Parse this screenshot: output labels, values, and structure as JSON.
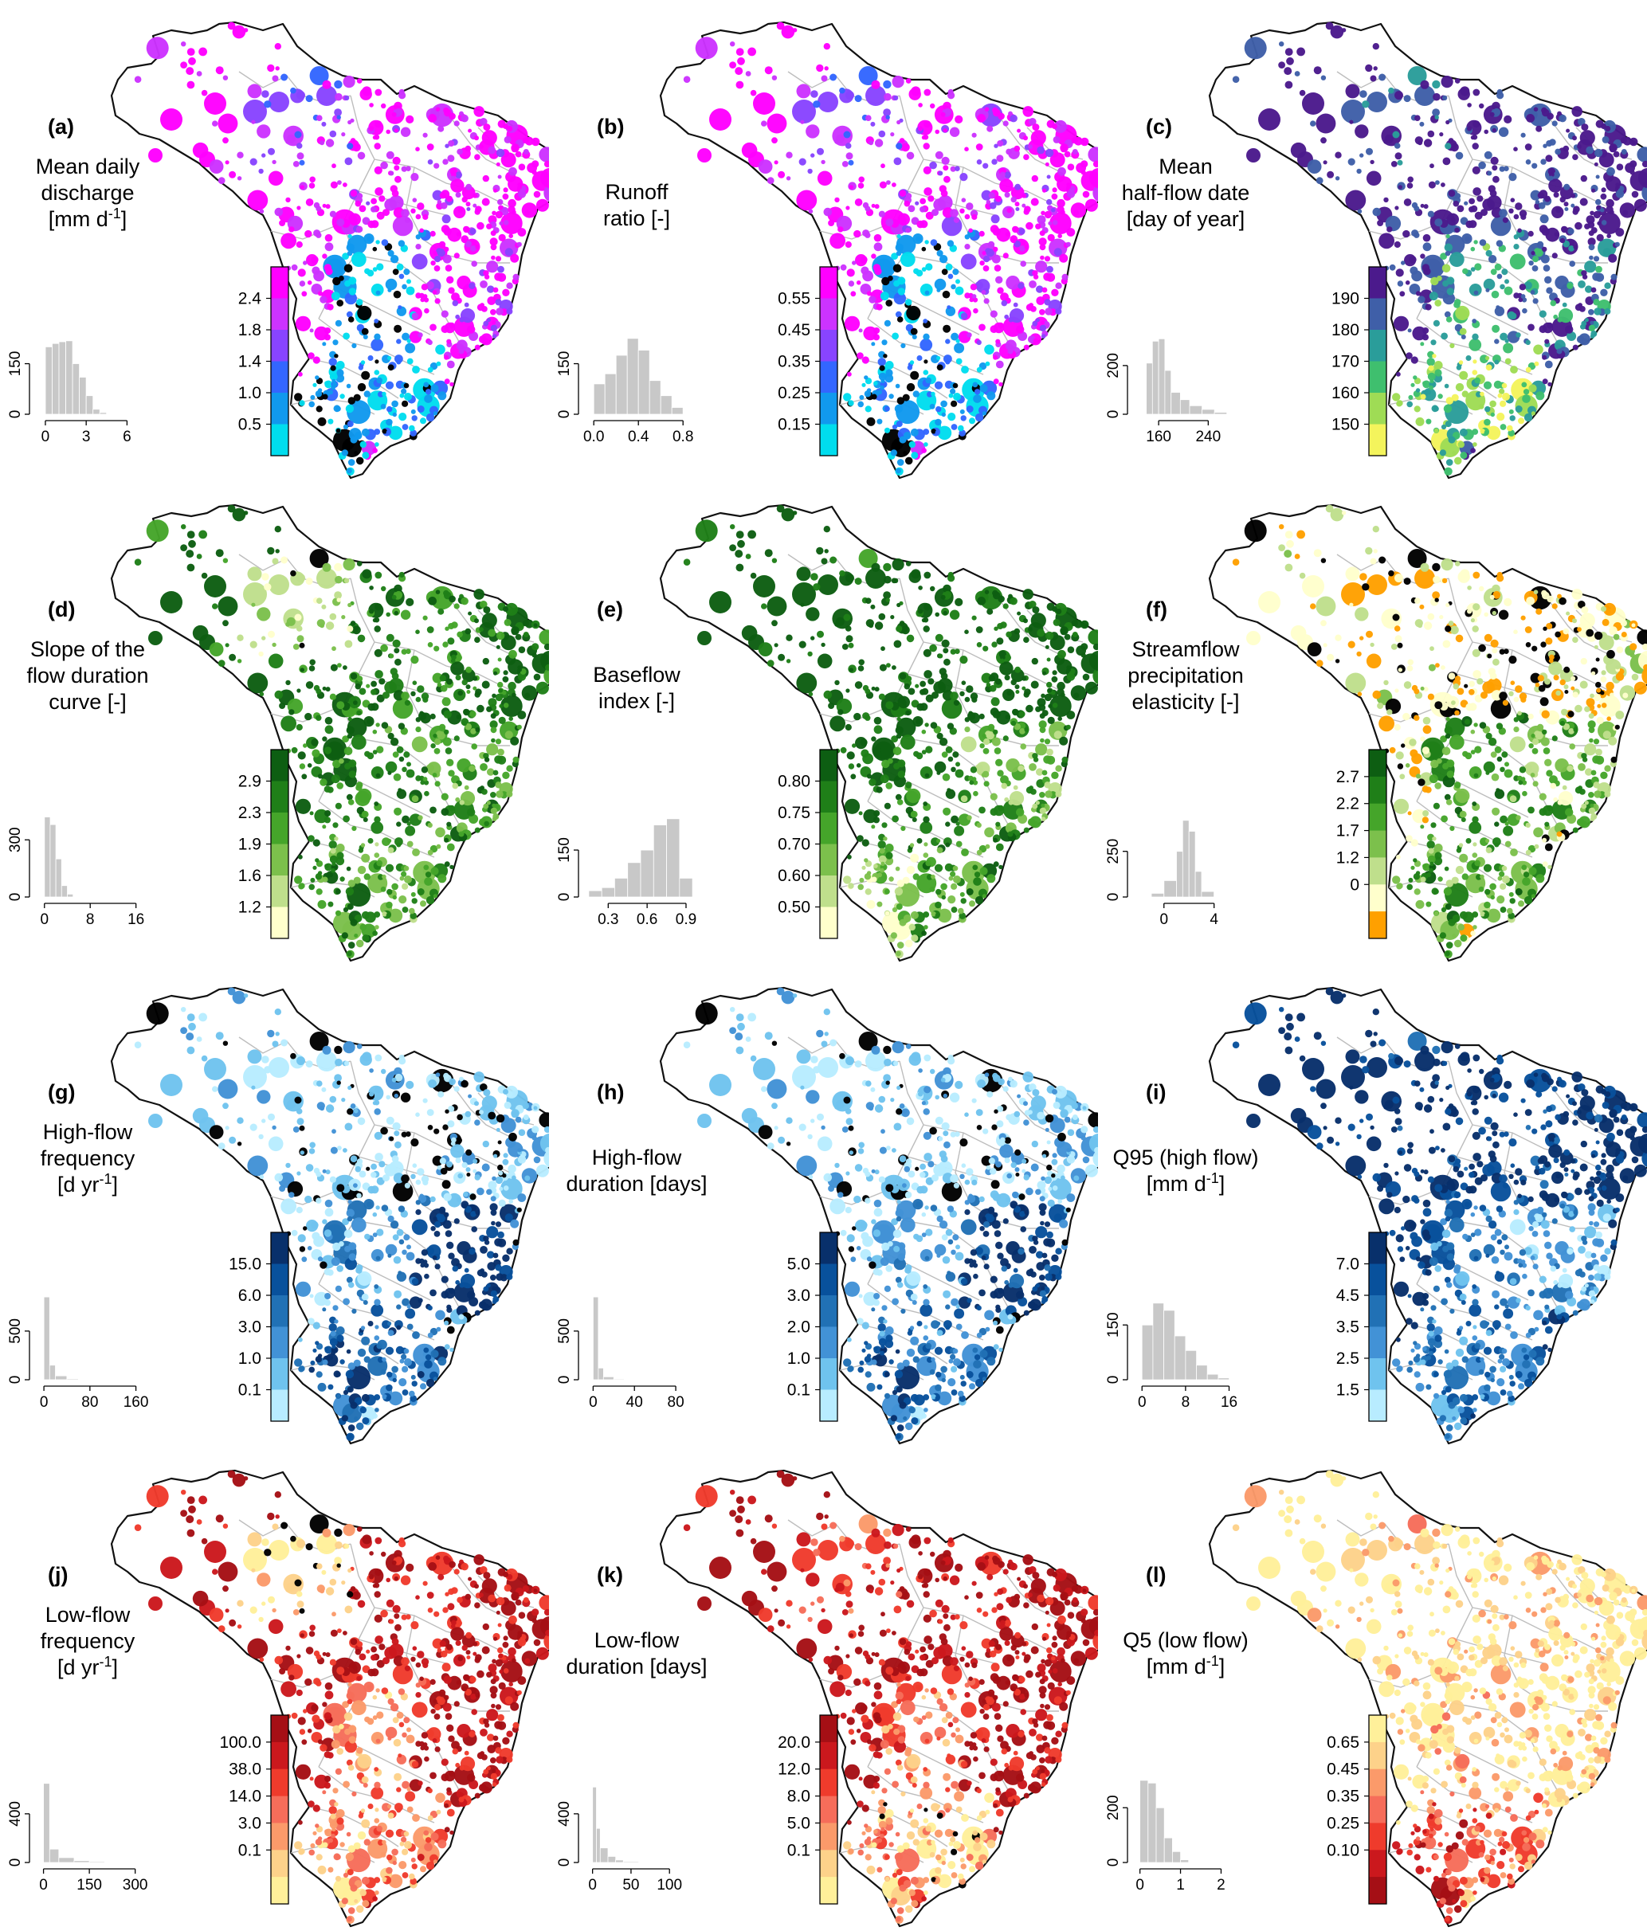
{
  "colors": {
    "map_border": "#111111",
    "state_lines": "#bdbdbd",
    "histogram_fill": "#c8c8c8",
    "histogram_edge": "#ffffff"
  },
  "chart_data": [
    {
      "type": "scatter",
      "tag": "(a)",
      "title_lines": [
        "Mean daily",
        "discharge",
        "[mm d-1]"
      ],
      "legend_labels": [
        "2.4",
        "1.8",
        "1.4",
        "1.0",
        "0.5"
      ],
      "legend_colors": [
        "#ff00ff",
        "#cc33ff",
        "#8844ff",
        "#3366ff",
        "#1199ee",
        "#00ddee"
      ],
      "histogram": {
        "y_ticks": [
          "0",
          "150"
        ],
        "x_ticks": [
          "0",
          "3",
          "6"
        ],
        "x_range": [
          -0.7,
          7.5
        ],
        "y_max": 260,
        "bins": [
          {
            "x0": 0,
            "x1": 0.5,
            "count": 200
          },
          {
            "x0": 0.5,
            "x1": 1,
            "count": 210
          },
          {
            "x0": 1,
            "x1": 1.5,
            "count": 215
          },
          {
            "x0": 1.5,
            "x1": 2,
            "count": 218
          },
          {
            "x0": 2,
            "x1": 2.5,
            "count": 150
          },
          {
            "x0": 2.5,
            "x1": 3,
            "count": 110
          },
          {
            "x0": 3,
            "x1": 3.5,
            "count": 55
          },
          {
            "x0": 3.5,
            "x1": 4,
            "count": 15
          },
          {
            "x0": 4,
            "x1": 4.5,
            "count": 5
          }
        ]
      },
      "bias": [
        0.95,
        0.6,
        0.9,
        0.15,
        0.85,
        0.2,
        0.1,
        0.55
      ]
    },
    {
      "type": "scatter",
      "tag": "(b)",
      "title_lines": [
        "Runoff",
        "ratio [-]"
      ],
      "legend_labels": [
        "0.55",
        "0.45",
        "0.35",
        "0.25",
        "0.15"
      ],
      "legend_colors": [
        "#ff00ff",
        "#cc33ff",
        "#8844ff",
        "#3366ff",
        "#1199ee",
        "#00ddee"
      ],
      "histogram": {
        "y_ticks": [
          "0",
          "150"
        ],
        "x_ticks": [
          "0.0",
          "0.4",
          "0.8"
        ],
        "x_range": [
          -0.08,
          0.92
        ],
        "y_max": 260,
        "bins": [
          {
            "x0": 0,
            "x1": 0.1,
            "count": 90
          },
          {
            "x0": 0.1,
            "x1": 0.2,
            "count": 120
          },
          {
            "x0": 0.2,
            "x1": 0.3,
            "count": 175
          },
          {
            "x0": 0.3,
            "x1": 0.4,
            "count": 225
          },
          {
            "x0": 0.4,
            "x1": 0.5,
            "count": 190
          },
          {
            "x0": 0.5,
            "x1": 0.6,
            "count": 100
          },
          {
            "x0": 0.6,
            "x1": 0.7,
            "count": 55
          },
          {
            "x0": 0.7,
            "x1": 0.8,
            "count": 20
          }
        ]
      },
      "bias": [
        0.95,
        0.6,
        0.85,
        0.15,
        0.8,
        0.2,
        0.15,
        0.5
      ]
    },
    {
      "type": "scatter",
      "tag": "(c)",
      "title_lines": [
        "Mean",
        "half-flow date",
        "[day of year]"
      ],
      "legend_labels": [
        "190",
        "180",
        "170",
        "160",
        "150"
      ],
      "legend_colors": [
        "#4b1a8c",
        "#3f5fa8",
        "#2a9d9a",
        "#3fbf6e",
        "#9fdc55",
        "#f4f45c"
      ],
      "histogram": {
        "y_ticks": [
          "0",
          "200"
        ],
        "x_ticks": [
          "160",
          "240"
        ],
        "x_range": [
          120,
          300
        ],
        "y_max": 360,
        "bins": [
          {
            "x0": 140,
            "x1": 150,
            "count": 210
          },
          {
            "x0": 150,
            "x1": 160,
            "count": 300
          },
          {
            "x0": 160,
            "x1": 170,
            "count": 310
          },
          {
            "x0": 170,
            "x1": 180,
            "count": 180
          },
          {
            "x0": 180,
            "x1": 195,
            "count": 90
          },
          {
            "x0": 195,
            "x1": 210,
            "count": 60
          },
          {
            "x0": 210,
            "x1": 230,
            "count": 35
          },
          {
            "x0": 230,
            "x1": 250,
            "count": 20
          },
          {
            "x0": 250,
            "x1": 270,
            "count": 8
          }
        ]
      },
      "bias": [
        0.95,
        0.8,
        0.95,
        0.55,
        0.7,
        0.3,
        0.4,
        0.45
      ]
    },
    {
      "type": "scatter",
      "tag": "(d)",
      "title_lines": [
        "Slope of the",
        "flow duration",
        "curve [-]"
      ],
      "legend_labels": [
        "2.9",
        "2.3",
        "1.9",
        "1.6",
        "1.2"
      ],
      "legend_colors": [
        "#0d5e12",
        "#1f7f18",
        "#45a52a",
        "#7cc04c",
        "#bfdf8c",
        "#ffffcc"
      ],
      "histogram": {
        "y_ticks": [
          "0",
          "300"
        ],
        "x_ticks": [
          "0",
          "8",
          "16"
        ],
        "x_range": [
          -1.5,
          18
        ],
        "y_max": 460,
        "bins": [
          {
            "x0": 0,
            "x1": 1,
            "count": 420
          },
          {
            "x0": 1,
            "x1": 2,
            "count": 380
          },
          {
            "x0": 2,
            "x1": 3,
            "count": 200
          },
          {
            "x0": 3,
            "x1": 4,
            "count": 60
          },
          {
            "x0": 4,
            "x1": 5,
            "count": 15
          }
        ]
      },
      "bias": [
        0.85,
        0.2,
        0.8,
        0.75,
        0.6,
        0.55,
        0.7,
        0.8
      ]
    },
    {
      "type": "scatter",
      "tag": "(e)",
      "title_lines": [
        "Baseflow",
        "index [-]"
      ],
      "legend_labels": [
        "0.80",
        "0.75",
        "0.70",
        "0.60",
        "0.50"
      ],
      "legend_colors": [
        "#0d5e12",
        "#1f7f18",
        "#45a52a",
        "#7cc04c",
        "#bfdf8c",
        "#ffffcc"
      ],
      "histogram": {
        "y_ticks": [
          "0",
          "150"
        ],
        "x_ticks": [
          "0.3",
          "0.6",
          "0.9"
        ],
        "x_range": [
          0.12,
          0.98
        ],
        "y_max": 280,
        "bins": [
          {
            "x0": 0.15,
            "x1": 0.25,
            "count": 20
          },
          {
            "x0": 0.25,
            "x1": 0.35,
            "count": 30
          },
          {
            "x0": 0.35,
            "x1": 0.45,
            "count": 60
          },
          {
            "x0": 0.45,
            "x1": 0.55,
            "count": 110
          },
          {
            "x0": 0.55,
            "x1": 0.65,
            "count": 150
          },
          {
            "x0": 0.65,
            "x1": 0.75,
            "count": 230
          },
          {
            "x0": 0.75,
            "x1": 0.85,
            "count": 250
          },
          {
            "x0": 0.85,
            "x1": 0.95,
            "count": 60
          }
        ]
      },
      "bias": [
        0.95,
        0.9,
        0.95,
        0.8,
        0.5,
        0.6,
        0.3,
        0.5
      ]
    },
    {
      "type": "scatter",
      "tag": "(f)",
      "title_lines": [
        "Streamflow",
        "precipitation",
        "elasticity [-]"
      ],
      "legend_labels": [
        "2.7",
        "2.2",
        "1.7",
        "1.2",
        "0"
      ],
      "legend_colors": [
        "#0d5e12",
        "#1f7f18",
        "#45a52a",
        "#7cc04c",
        "#bfdf8c",
        "#ffffcc",
        "#ffa000"
      ],
      "histogram": {
        "y_ticks": [
          "0",
          "250"
        ],
        "x_ticks": [
          "0",
          "4"
        ],
        "x_range": [
          -2.4,
          6.5
        ],
        "y_max": 480,
        "bins": [
          {
            "x0": -1,
            "x1": 0,
            "count": 20
          },
          {
            "x0": 0,
            "x1": 1,
            "count": 90
          },
          {
            "x0": 1,
            "x1": 1.5,
            "count": 250
          },
          {
            "x0": 1.5,
            "x1": 2,
            "count": 420
          },
          {
            "x0": 2,
            "x1": 2.5,
            "count": 360
          },
          {
            "x0": 2.5,
            "x1": 3,
            "count": 140
          },
          {
            "x0": 3,
            "x1": 4,
            "count": 30
          }
        ]
      },
      "bias": [
        0.2,
        0.1,
        0.15,
        0.7,
        0.55,
        0.6,
        0.65,
        0.7
      ]
    },
    {
      "type": "scatter",
      "tag": "(g)",
      "title_lines": [
        "High-flow",
        "frequency",
        "[d yr-1]"
      ],
      "legend_labels": [
        "15.0",
        "6.0",
        "3.0",
        "1.0",
        "0.1"
      ],
      "legend_colors": [
        "#08306b",
        "#08519c",
        "#2171b5",
        "#4292d6",
        "#6fc3ee",
        "#b8ecff"
      ],
      "histogram": {
        "y_ticks": [
          "0",
          "500"
        ],
        "x_ticks": [
          "0",
          "80",
          "160"
        ],
        "x_range": [
          -14,
          180
        ],
        "y_max": 900,
        "bins": [
          {
            "x0": 0,
            "x1": 10,
            "count": 850
          },
          {
            "x0": 10,
            "x1": 20,
            "count": 150
          },
          {
            "x0": 20,
            "x1": 40,
            "count": 40
          },
          {
            "x0": 40,
            "x1": 60,
            "count": 10
          }
        ]
      },
      "bias": [
        0.2,
        0.15,
        0.15,
        0.4,
        0.95,
        0.6,
        0.75,
        0.9
      ]
    },
    {
      "type": "scatter",
      "tag": "(h)",
      "title_lines": [
        "High-flow",
        "duration [days]"
      ],
      "legend_labels": [
        "5.0",
        "3.0",
        "2.0",
        "1.0",
        "0.1"
      ],
      "legend_colors": [
        "#08306b",
        "#08519c",
        "#2171b5",
        "#4292d6",
        "#6fc3ee",
        "#b8ecff"
      ],
      "histogram": {
        "y_ticks": [
          "0",
          "500"
        ],
        "x_ticks": [
          "0",
          "40",
          "80"
        ],
        "x_range": [
          -8,
          100
        ],
        "y_max": 900,
        "bins": [
          {
            "x0": 0,
            "x1": 5,
            "count": 850
          },
          {
            "x0": 5,
            "x1": 10,
            "count": 120
          },
          {
            "x0": 10,
            "x1": 20,
            "count": 30
          },
          {
            "x0": 20,
            "x1": 30,
            "count": 8
          }
        ]
      },
      "bias": [
        0.2,
        0.15,
        0.2,
        0.35,
        0.9,
        0.55,
        0.7,
        0.85
      ]
    },
    {
      "type": "scatter",
      "tag": "(i)",
      "title_lines": [
        "Q95 (high flow)",
        "[mm d-1]"
      ],
      "legend_labels": [
        "7.0",
        "4.5",
        "3.5",
        "2.5",
        "1.5"
      ],
      "legend_colors": [
        "#08306b",
        "#08519c",
        "#2171b5",
        "#4292d6",
        "#6fc3ee",
        "#b8ecff"
      ],
      "histogram": {
        "y_ticks": [
          "0",
          "150"
        ],
        "x_ticks": [
          "0",
          "8",
          "16"
        ],
        "x_range": [
          -1.5,
          19
        ],
        "y_max": 240,
        "bins": [
          {
            "x0": 0,
            "x1": 2,
            "count": 150
          },
          {
            "x0": 2,
            "x1": 4,
            "count": 210
          },
          {
            "x0": 4,
            "x1": 6,
            "count": 190
          },
          {
            "x0": 6,
            "x1": 8,
            "count": 120
          },
          {
            "x0": 8,
            "x1": 10,
            "count": 80
          },
          {
            "x0": 10,
            "x1": 12,
            "count": 40
          },
          {
            "x0": 12,
            "x1": 14,
            "count": 15
          },
          {
            "x0": 14,
            "x1": 16,
            "count": 5
          }
        ]
      },
      "bias": [
        0.95,
        0.85,
        0.9,
        0.55,
        0.35,
        0.55,
        0.5,
        0.9
      ]
    },
    {
      "type": "scatter",
      "tag": "(j)",
      "title_lines": [
        "Low-flow",
        "frequency",
        "[d yr-1]"
      ],
      "legend_labels": [
        "100.0",
        "38.0",
        "14.0",
        "3.0",
        "0.1"
      ],
      "legend_colors": [
        "#a50f15",
        "#cb181d",
        "#ef3b2c",
        "#f66d5a",
        "#fb9a6a",
        "#fdd28a",
        "#fff09a"
      ],
      "histogram": {
        "y_ticks": [
          "0",
          "400"
        ],
        "x_ticks": [
          "0",
          "150",
          "300"
        ],
        "x_range": [
          -25,
          340
        ],
        "y_max": 720,
        "bins": [
          {
            "x0": 0,
            "x1": 20,
            "count": 650
          },
          {
            "x0": 20,
            "x1": 50,
            "count": 110
          },
          {
            "x0": 50,
            "x1": 100,
            "count": 40
          },
          {
            "x0": 100,
            "x1": 150,
            "count": 15
          },
          {
            "x0": 150,
            "x1": 200,
            "count": 8
          }
        ]
      },
      "bias": [
        0.85,
        0.1,
        0.85,
        0.4,
        0.85,
        0.45,
        0.35,
        0.8
      ]
    },
    {
      "type": "scatter",
      "tag": "(k)",
      "title_lines": [
        "Low-flow",
        "duration [days]"
      ],
      "legend_labels": [
        "20.0",
        "12.0",
        "8.0",
        "5.0",
        "0.1"
      ],
      "legend_colors": [
        "#a50f15",
        "#cb181d",
        "#ef3b2c",
        "#f66d5a",
        "#fb9a6a",
        "#fdd28a",
        "#fff09a"
      ],
      "histogram": {
        "y_ticks": [
          "0",
          "400"
        ],
        "x_ticks": [
          "0",
          "50",
          "100"
        ],
        "x_range": [
          -10,
          135
        ],
        "y_max": 720,
        "bins": [
          {
            "x0": 0,
            "x1": 5,
            "count": 620
          },
          {
            "x0": 5,
            "x1": 10,
            "count": 280
          },
          {
            "x0": 10,
            "x1": 20,
            "count": 120
          },
          {
            "x0": 20,
            "x1": 30,
            "count": 50
          },
          {
            "x0": 30,
            "x1": 40,
            "count": 20
          },
          {
            "x0": 40,
            "x1": 60,
            "count": 8
          }
        ]
      },
      "bias": [
        0.9,
        0.6,
        0.9,
        0.45,
        0.85,
        0.2,
        0.4,
        0.8
      ]
    },
    {
      "type": "scatter",
      "tag": "(l)",
      "title_lines": [
        "Q5 (low flow)",
        "[mm d-1]"
      ],
      "legend_labels": [
        "0.65",
        "0.45",
        "0.35",
        "0.25",
        "0.10"
      ],
      "legend_colors": [
        "#fff09a",
        "#fdd28a",
        "#fb9a6a",
        "#f66d5a",
        "#ef3b2c",
        "#cb181d",
        "#a50f15"
      ],
      "histogram": {
        "y_ticks": [
          "0",
          "200"
        ],
        "x_ticks": [
          "0",
          "1",
          "2"
        ],
        "x_range": [
          -0.15,
          2.6
        ],
        "y_max": 320,
        "bins": [
          {
            "x0": 0,
            "x1": 0.2,
            "count": 300
          },
          {
            "x0": 0.2,
            "x1": 0.4,
            "count": 290
          },
          {
            "x0": 0.4,
            "x1": 0.6,
            "count": 200
          },
          {
            "x0": 0.6,
            "x1": 0.8,
            "count": 90
          },
          {
            "x0": 0.8,
            "x1": 1.0,
            "count": 40
          },
          {
            "x0": 1.0,
            "x1": 1.2,
            "count": 10
          }
        ]
      },
      "bias": [
        0.95,
        0.8,
        0.9,
        0.8,
        0.9,
        0.5,
        0.3,
        0.75
      ]
    }
  ]
}
